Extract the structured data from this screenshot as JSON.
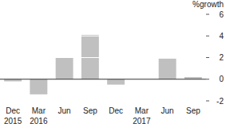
{
  "chart_data": {
    "type": "bar",
    "y_label": "%growth",
    "categories": [
      "Dec 2015",
      "Mar 2016",
      "Jun",
      "Sep",
      "Dec",
      "Mar 2017",
      "Jun",
      "Sep"
    ],
    "values": [
      -0.2,
      -1.4,
      2.0,
      4.1,
      -0.5,
      0.0,
      1.9,
      0.2
    ],
    "color": "#c0c0c0",
    "ylim": [
      -2,
      6
    ],
    "yticks": [
      -2,
      0,
      2,
      4,
      6
    ],
    "grid": true
  }
}
